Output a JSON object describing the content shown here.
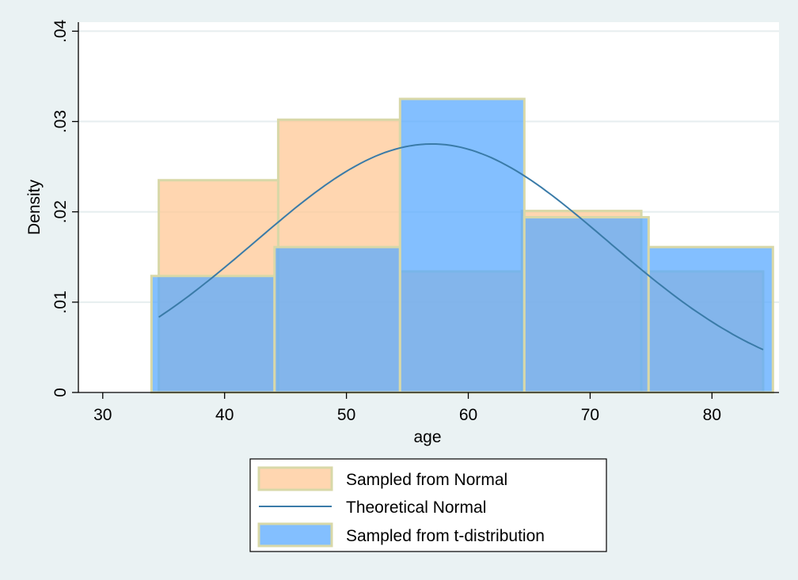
{
  "chart_data": {
    "type": "bar",
    "xlabel": "age",
    "ylabel": "Density",
    "xlim": [
      28,
      85.5
    ],
    "ylim": [
      0,
      0.041
    ],
    "x_ticks": [
      {
        "value": 30,
        "label": "30"
      },
      {
        "value": 40,
        "label": "40"
      },
      {
        "value": 50,
        "label": "50"
      },
      {
        "value": 60,
        "label": "60"
      },
      {
        "value": 70,
        "label": "70"
      },
      {
        "value": 80,
        "label": "80"
      }
    ],
    "y_ticks": [
      {
        "value": 0,
        "label": "0"
      },
      {
        "value": 0.01,
        "label": ".01"
      },
      {
        "value": 0.02,
        "label": ".02"
      },
      {
        "value": 0.03,
        "label": ".03"
      },
      {
        "value": 0.04,
        "label": ".04"
      }
    ],
    "grid": true,
    "legend_position": "bottom",
    "series": [
      {
        "name": "Sampled from Normal",
        "kind": "histogram",
        "color": "#ffc896",
        "bins": [
          {
            "x0": 34.6,
            "x1": 44.4,
            "density": 0.0235
          },
          {
            "x0": 44.4,
            "x1": 54.4,
            "density": 0.0302
          },
          {
            "x0": 54.4,
            "x1": 64.4,
            "density": 0.0134
          },
          {
            "x0": 64.4,
            "x1": 74.2,
            "density": 0.0201
          },
          {
            "x0": 74.2,
            "x1": 84.2,
            "density": 0.0134
          }
        ]
      },
      {
        "name": "Theoretical Normal",
        "kind": "line",
        "color": "#3a7ba8",
        "mean": 57,
        "sd": 14.5,
        "x_range": [
          34.6,
          84.2
        ]
      },
      {
        "name": "Sampled from t-distribution",
        "kind": "histogram",
        "color": "#5aaaff",
        "bins": [
          {
            "x0": 34.0,
            "x1": 44.1,
            "density": 0.0129
          },
          {
            "x0": 44.1,
            "x1": 54.4,
            "density": 0.0161
          },
          {
            "x0": 54.4,
            "x1": 64.6,
            "density": 0.0325
          },
          {
            "x0": 64.6,
            "x1": 74.8,
            "density": 0.0194
          },
          {
            "x0": 74.8,
            "x1": 85.0,
            "density": 0.0161
          }
        ]
      }
    ]
  },
  "legend": {
    "items": [
      {
        "label": "Sampled from Normal",
        "kind": "box",
        "color": "#ffc896"
      },
      {
        "label": "Theoretical Normal",
        "kind": "line",
        "color": "#3a7ba8"
      },
      {
        "label": "Sampled from t-distribution",
        "kind": "box",
        "color": "#5aaaff"
      }
    ]
  }
}
